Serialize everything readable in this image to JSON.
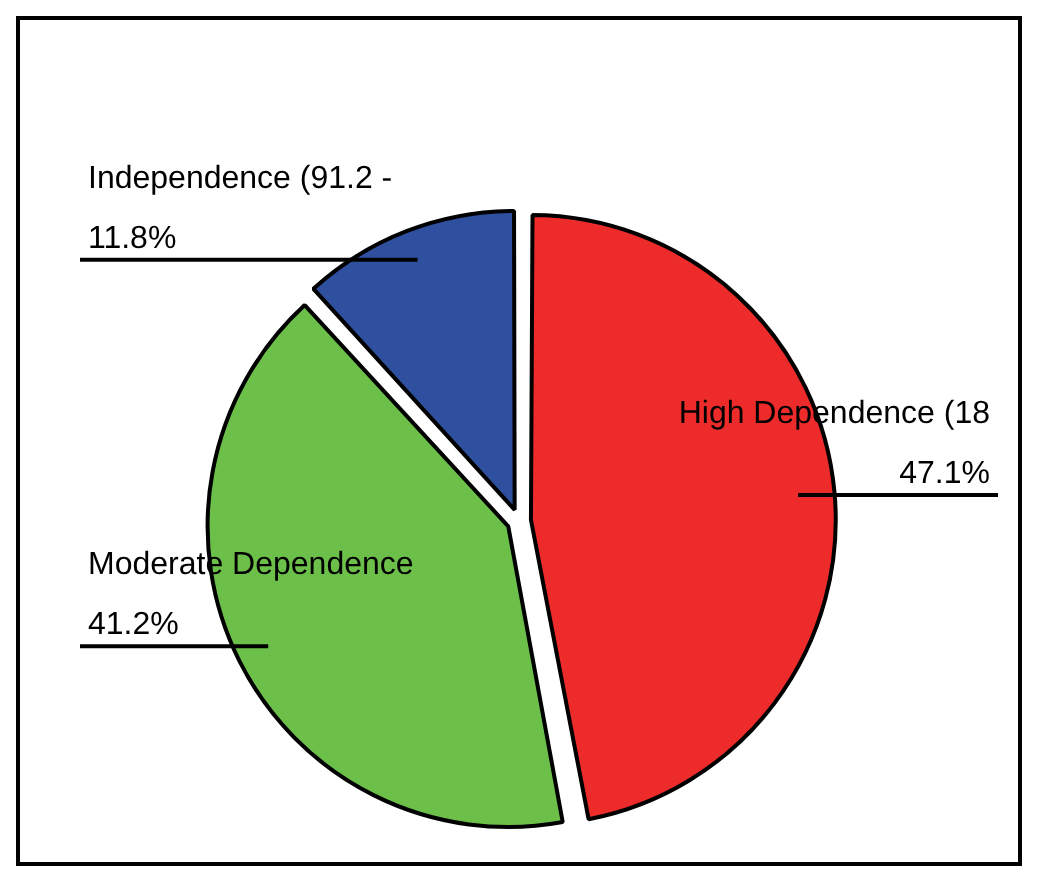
{
  "chart_data": {
    "type": "pie",
    "categories": [
      "High Dependence (18",
      "Moderate Dependence",
      "Independence (91.2 -"
    ],
    "values": [
      47.1,
      41.2,
      11.8
    ],
    "value_labels": [
      "47.1%",
      "41.2%",
      "11.8%"
    ],
    "colors": [
      "#ee2b2b",
      "#6cc04a",
      "#2f4f9f"
    ],
    "legend": false
  }
}
